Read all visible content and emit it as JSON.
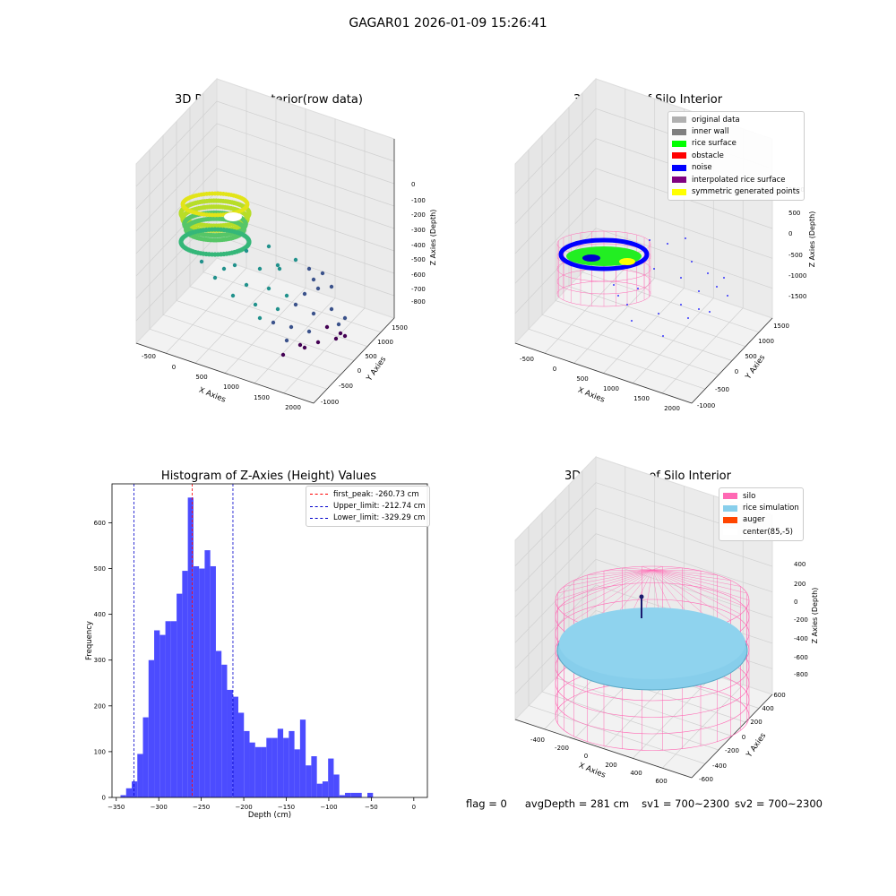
{
  "suptitle": "GAGAR01 2026-01-09 15:26:41",
  "footer": {
    "flag": "flag = 0",
    "avg_depth": "avgDepth = 281 cm",
    "sv1": "sv1 = 700~2300",
    "sv2": "sv2 = 700~2300"
  },
  "chart_data": [
    {
      "type": "scatter",
      "projection": "3d",
      "title": "3D Plot of Silo Interior(row data)",
      "xlabel": "X Axies",
      "ylabel": "Y Axies",
      "zlabel": "Z Axies (Depth)",
      "x_ticks": [
        "-500",
        "0",
        "500",
        "1000",
        "1500",
        "2000"
      ],
      "y_ticks": [
        "-1000",
        "-500",
        "0",
        "500",
        "1000",
        "1500"
      ],
      "z_ticks": [
        "0",
        "-100",
        "-200",
        "-300",
        "-400",
        "-500",
        "-600",
        "-700",
        "-800"
      ],
      "colormap": "viridis",
      "points": [
        {
          "x": 300,
          "y": 600,
          "z": -560
        },
        {
          "x": 450,
          "y": 500,
          "z": -580
        },
        {
          "x": 600,
          "y": 300,
          "z": -600
        },
        {
          "x": 750,
          "y": 200,
          "z": -620
        },
        {
          "x": 900,
          "y": 50,
          "z": -650
        },
        {
          "x": 1050,
          "y": -100,
          "z": -680
        },
        {
          "x": 1200,
          "y": -250,
          "z": -700
        },
        {
          "x": 1350,
          "y": -400,
          "z": -720
        },
        {
          "x": 1500,
          "y": -500,
          "z": -750
        },
        {
          "x": 1650,
          "y": -650,
          "z": -780
        },
        {
          "x": 1800,
          "y": -800,
          "z": -820
        }
      ]
    },
    {
      "type": "scatter",
      "projection": "3d",
      "title": "3D classify of Silo Interior",
      "xlabel": "X Axies",
      "ylabel": "Y Axies",
      "zlabel": "Z Axies (Depth)",
      "x_ticks": [
        "-500",
        "0",
        "500",
        "1000",
        "1500",
        "2000"
      ],
      "y_ticks": [
        "-1000",
        "-500",
        "0",
        "500",
        "1000",
        "1500"
      ],
      "z_ticks": [
        "1000",
        "500",
        "0",
        "-500",
        "-1000",
        "-1500"
      ],
      "legend": [
        {
          "label": "original data",
          "color": "#b0b0b0"
        },
        {
          "label": "inner wall",
          "color": "#808080"
        },
        {
          "label": "rice surface",
          "color": "#00ff00"
        },
        {
          "label": "obstacle",
          "color": "#ff0000"
        },
        {
          "label": "noise",
          "color": "#0000ff"
        },
        {
          "label": "interpolated rice surface",
          "color": "#800080"
        },
        {
          "label": "symmetric generated points",
          "color": "#ffff00"
        }
      ],
      "legend_loc": "upper right"
    },
    {
      "type": "bar",
      "title": "Histogram of Z-Axies (Height) Values",
      "xlabel": "Depth (cm)",
      "ylabel": "Frequency",
      "xlim": [
        -355,
        16
      ],
      "ylim": [
        0,
        685
      ],
      "x_ticks": [
        -350,
        -300,
        -250,
        -200,
        -150,
        -100,
        -50,
        0
      ],
      "y_ticks": [
        0,
        100,
        200,
        300,
        400,
        500,
        600
      ],
      "bar_color": "#4c4cff",
      "bins_start": -345,
      "bin_width": 6.6,
      "values": [
        5,
        20,
        35,
        95,
        175,
        300,
        365,
        355,
        385,
        385,
        445,
        495,
        655,
        505,
        500,
        540,
        505,
        320,
        290,
        235,
        220,
        185,
        145,
        120,
        110,
        110,
        130,
        130,
        150,
        130,
        145,
        105,
        170,
        70,
        90,
        30,
        35,
        85,
        50,
        5,
        10,
        10,
        10,
        0,
        10
      ],
      "vlines": [
        {
          "label": "first_peak: -260.73 cm",
          "x": -260.73,
          "color": "#ff0000"
        },
        {
          "label": "Upper_limit: -212.74 cm",
          "x": -212.74,
          "color": "#0000cc"
        },
        {
          "label": "Lower_limit: -329.29 cm",
          "x": -329.29,
          "color": "#0000cc"
        }
      ],
      "legend_loc": "upper right"
    },
    {
      "type": "scatter",
      "projection": "3d",
      "title": "3D simulation of Silo Interior",
      "xlabel": "X Axies",
      "ylabel": "Y Axies",
      "zlabel": "Z Axies (Depth)",
      "x_ticks": [
        "-400",
        "-200",
        "0",
        "200",
        "400",
        "600"
      ],
      "y_ticks": [
        "-600",
        "-400",
        "-200",
        "0",
        "200",
        "400",
        "600"
      ],
      "z_ticks": [
        "400",
        "200",
        "0",
        "-200",
        "-400",
        "-600",
        "-800"
      ],
      "legend": [
        {
          "label": "silo",
          "color": "#ff69b4"
        },
        {
          "label": "rice simulation",
          "color": "#87ceeb"
        },
        {
          "label": "auger",
          "color": "#ff4500"
        },
        {
          "label": "center(85,-5)",
          "color": "#ffffff"
        }
      ],
      "legend_loc": "upper right"
    }
  ]
}
